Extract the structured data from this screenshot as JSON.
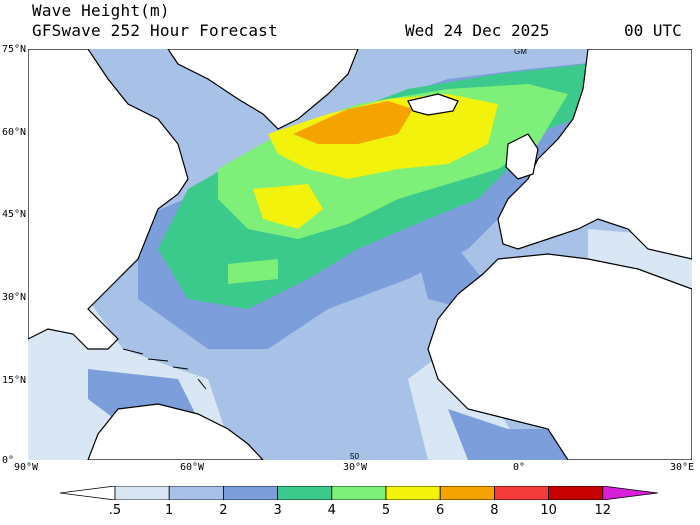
{
  "header": {
    "title": "Wave Height(m)",
    "subtitle": "GFSwave 252 Hour Forecast",
    "date": "Wed 24 Dec 2025",
    "time": "00 UTC"
  },
  "map": {
    "region": "North Atlantic",
    "variable": "Significant wave height",
    "lat_labels": [
      "75°N",
      "60°N",
      "45°N",
      "30°N",
      "15°N",
      "0°"
    ],
    "lon_labels": [
      "90°W",
      "60°W",
      "30°W",
      "0°",
      "30°E"
    ],
    "inline_marks": [
      "GM",
      "50"
    ],
    "colors": {
      "land": "#ffffff",
      "coast": "#000000",
      "h05": "#d9e6f4",
      "h1": "#a8c1e6",
      "h2": "#7c9fdc",
      "h3": "#5d85d6",
      "h4": "#3cc98c",
      "h5": "#7ef07a",
      "h6": "#f2f20c",
      "h8": "#f5a300",
      "h10": "#f23b3b",
      "h12": "#c70000",
      "h12plus": "#d81fd8"
    }
  },
  "colorbar": {
    "labels": [
      ".5",
      "1",
      "2",
      "3",
      "4",
      "5",
      "6",
      "8",
      "10",
      "12"
    ],
    "colors": [
      "#ffffff",
      "#d9e6f4",
      "#a8c1e6",
      "#7c9fdc",
      "#3cc98c",
      "#7ef07a",
      "#f2f20c",
      "#f5a300",
      "#f23b3b",
      "#c70000",
      "#d81fd8"
    ]
  }
}
